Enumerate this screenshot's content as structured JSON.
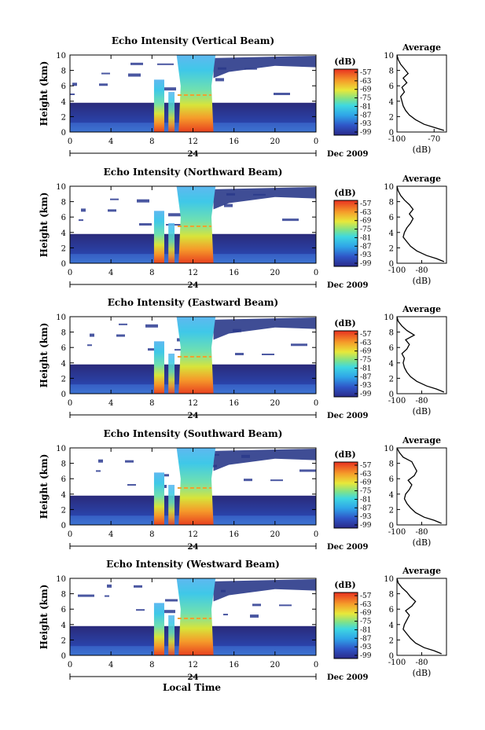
{
  "figure": {
    "xlabel_common": "Local Time",
    "date_label": "Dec 2009",
    "day_label": "24",
    "colorbar_unit": "(dB)",
    "colorbar_ticks": [
      "-57",
      "-63",
      "-69",
      "-75",
      "-81",
      "-87",
      "-93",
      "-99"
    ],
    "average_title": "Average",
    "average_unit": "(dB)"
  },
  "chart_data": [
    {
      "type": "heatmap",
      "title": "Echo Intensity (Vertical Beam)",
      "ylabel": "Height (km)",
      "xlabel": "",
      "x_ticks": [
        "0",
        "4",
        "8",
        "12",
        "16",
        "20",
        "0"
      ],
      "y_ticks": [
        "0",
        "2",
        "4",
        "6",
        "8",
        "10"
      ],
      "xlim": [
        0,
        24
      ],
      "ylim": [
        0,
        10
      ],
      "colorbar": {
        "label": "(dB)",
        "range": [
          -99,
          -57
        ]
      },
      "average": {
        "title": "Average",
        "xlabel": "(dB)",
        "x_ticks": [
          "-100",
          "-70"
        ],
        "xlim": [
          -100,
          -60
        ],
        "profile": [
          [
            0.2,
            -62
          ],
          [
            0.6,
            -70
          ],
          [
            1.0,
            -78
          ],
          [
            1.6,
            -85
          ],
          [
            2.2,
            -90
          ],
          [
            2.8,
            -93
          ],
          [
            3.4,
            -95
          ],
          [
            4.0,
            -96
          ],
          [
            4.6,
            -97
          ],
          [
            5.2,
            -94
          ],
          [
            5.8,
            -96
          ],
          [
            6.4,
            -92
          ],
          [
            7.0,
            -95
          ],
          [
            7.6,
            -91
          ],
          [
            8.2,
            -94
          ],
          [
            8.8,
            -97
          ],
          [
            9.4,
            -99
          ],
          [
            10.0,
            -100
          ]
        ]
      }
    },
    {
      "type": "heatmap",
      "title": "Echo Intensity (Northward Beam)",
      "ylabel": "Height (km)",
      "xlabel": "",
      "x_ticks": [
        "0",
        "4",
        "8",
        "12",
        "16",
        "20",
        "0"
      ],
      "y_ticks": [
        "0",
        "2",
        "4",
        "6",
        "8",
        "10"
      ],
      "xlim": [
        0,
        24
      ],
      "ylim": [
        0,
        10
      ],
      "colorbar": {
        "label": "(dB)",
        "range": [
          -99,
          -57
        ]
      },
      "average": {
        "title": "Average",
        "xlabel": "(dB)",
        "x_ticks": [
          "-100",
          "-80"
        ],
        "xlim": [
          -100,
          -60
        ],
        "profile": [
          [
            0.2,
            -62
          ],
          [
            0.6,
            -68
          ],
          [
            1.0,
            -76
          ],
          [
            1.6,
            -84
          ],
          [
            2.2,
            -89
          ],
          [
            2.8,
            -92
          ],
          [
            3.4,
            -95
          ],
          [
            4.0,
            -94
          ],
          [
            4.6,
            -92
          ],
          [
            5.2,
            -89
          ],
          [
            5.8,
            -87
          ],
          [
            6.4,
            -90
          ],
          [
            7.0,
            -87
          ],
          [
            7.6,
            -90
          ],
          [
            8.2,
            -94
          ],
          [
            8.8,
            -97
          ],
          [
            9.4,
            -99
          ],
          [
            10.0,
            -100
          ]
        ]
      }
    },
    {
      "type": "heatmap",
      "title": "Echo Intensity (Eastward Beam)",
      "ylabel": "Height (km)",
      "xlabel": "",
      "x_ticks": [
        "0",
        "4",
        "8",
        "12",
        "16",
        "20",
        "0"
      ],
      "y_ticks": [
        "0",
        "2",
        "4",
        "6",
        "8",
        "10"
      ],
      "xlim": [
        0,
        24
      ],
      "ylim": [
        0,
        10
      ],
      "colorbar": {
        "label": "(dB)",
        "range": [
          -99,
          -57
        ]
      },
      "average": {
        "title": "Average",
        "xlabel": "(dB)",
        "x_ticks": [
          "-100",
          "-80"
        ],
        "xlim": [
          -100,
          -60
        ],
        "profile": [
          [
            0.2,
            -62
          ],
          [
            0.6,
            -68
          ],
          [
            1.0,
            -76
          ],
          [
            1.6,
            -84
          ],
          [
            2.2,
            -89
          ],
          [
            2.8,
            -92
          ],
          [
            3.4,
            -94
          ],
          [
            4.0,
            -95
          ],
          [
            4.6,
            -94
          ],
          [
            5.2,
            -96
          ],
          [
            5.8,
            -92
          ],
          [
            6.4,
            -90
          ],
          [
            7.0,
            -93
          ],
          [
            7.6,
            -86
          ],
          [
            8.2,
            -92
          ],
          [
            8.8,
            -96
          ],
          [
            9.4,
            -99
          ],
          [
            10.0,
            -100
          ]
        ]
      }
    },
    {
      "type": "heatmap",
      "title": "Echo Intensity (Southward Beam)",
      "ylabel": "Height (km)",
      "xlabel": "",
      "x_ticks": [
        "0",
        "4",
        "8",
        "12",
        "16",
        "20",
        "0"
      ],
      "y_ticks": [
        "0",
        "2",
        "4",
        "6",
        "8",
        "10"
      ],
      "xlim": [
        0,
        24
      ],
      "ylim": [
        0,
        10
      ],
      "colorbar": {
        "label": "(dB)",
        "range": [
          -99,
          -57
        ]
      },
      "average": {
        "title": "Average",
        "xlabel": "(dB)",
        "x_ticks": [
          "-100",
          "-80"
        ],
        "xlim": [
          -100,
          -60
        ],
        "profile": [
          [
            0.2,
            -64
          ],
          [
            0.6,
            -70
          ],
          [
            1.0,
            -78
          ],
          [
            1.6,
            -85
          ],
          [
            2.2,
            -89
          ],
          [
            2.8,
            -92
          ],
          [
            3.4,
            -94
          ],
          [
            4.0,
            -93
          ],
          [
            4.6,
            -90
          ],
          [
            5.2,
            -88
          ],
          [
            5.8,
            -91
          ],
          [
            6.4,
            -86
          ],
          [
            7.0,
            -84
          ],
          [
            7.6,
            -86
          ],
          [
            8.2,
            -88
          ],
          [
            8.8,
            -95
          ],
          [
            9.4,
            -98
          ],
          [
            10.0,
            -100
          ]
        ]
      }
    },
    {
      "type": "heatmap",
      "title": "Echo Intensity (Westward Beam)",
      "ylabel": "Height (km)",
      "xlabel": "Local Time",
      "x_ticks": [
        "0",
        "4",
        "8",
        "12",
        "16",
        "20",
        "0"
      ],
      "y_ticks": [
        "0",
        "2",
        "4",
        "6",
        "8",
        "10"
      ],
      "xlim": [
        0,
        24
      ],
      "ylim": [
        0,
        10
      ],
      "colorbar": {
        "label": "(dB)",
        "range": [
          -99,
          -57
        ]
      },
      "average": {
        "title": "Average",
        "xlabel": "(dB)",
        "x_ticks": [
          "-100",
          "-80"
        ],
        "xlim": [
          -100,
          -60
        ],
        "profile": [
          [
            0.2,
            -64
          ],
          [
            0.6,
            -70
          ],
          [
            1.0,
            -78
          ],
          [
            1.6,
            -85
          ],
          [
            2.2,
            -89
          ],
          [
            2.8,
            -92
          ],
          [
            3.4,
            -95
          ],
          [
            4.0,
            -94
          ],
          [
            4.6,
            -92
          ],
          [
            5.2,
            -90
          ],
          [
            5.8,
            -93
          ],
          [
            6.4,
            -88
          ],
          [
            7.0,
            -85
          ],
          [
            7.6,
            -89
          ],
          [
            8.2,
            -92
          ],
          [
            8.8,
            -96
          ],
          [
            9.4,
            -99
          ],
          [
            10.0,
            -100
          ]
        ]
      }
    }
  ]
}
